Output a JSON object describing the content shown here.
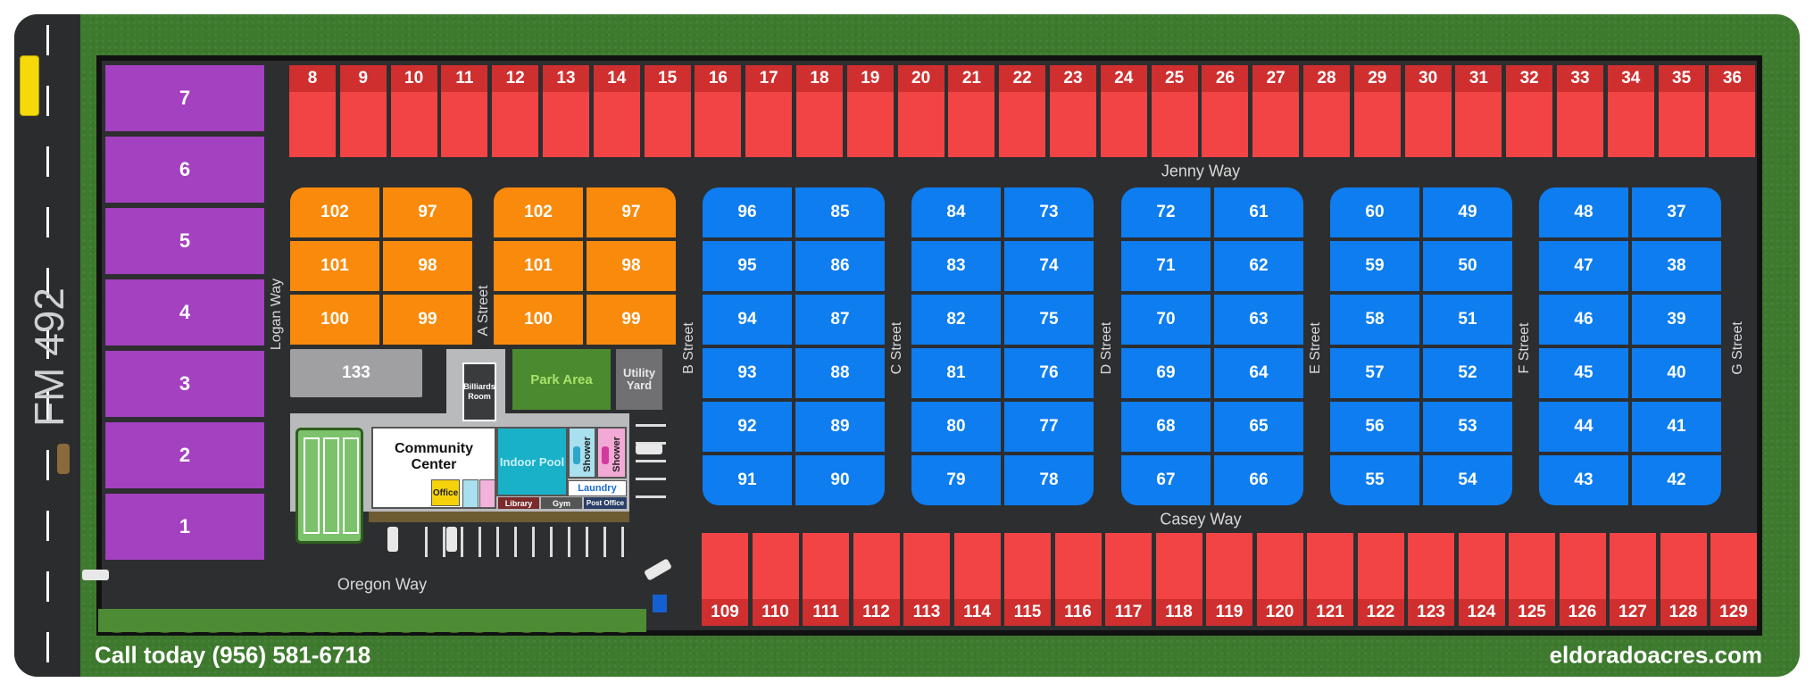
{
  "highway": {
    "label": "FM 492"
  },
  "streets": {
    "top": "Jenny Way",
    "middle": "Casey Way",
    "bottom": "Oregon Way",
    "logan": "Logan Way",
    "a": "A Street",
    "b": "B Street",
    "c": "C Street",
    "d": "D Street",
    "e": "E Street",
    "f": "F Street",
    "g": "G Street"
  },
  "lots": {
    "purple": [
      "7",
      "6",
      "5",
      "4",
      "3",
      "2",
      "1"
    ],
    "top_row": [
      "8",
      "9",
      "10",
      "11",
      "12",
      "13",
      "14",
      "15",
      "16",
      "17",
      "18",
      "19",
      "20",
      "21",
      "22",
      "23",
      "24",
      "25",
      "26",
      "27",
      "28",
      "29",
      "30",
      "31",
      "32",
      "33",
      "34",
      "35",
      "36"
    ],
    "bottom_row": [
      "109",
      "110",
      "111",
      "112",
      "113",
      "114",
      "115",
      "116",
      "117",
      "118",
      "119",
      "120",
      "121",
      "122",
      "123",
      "124",
      "125",
      "126",
      "127",
      "128",
      "129"
    ],
    "orange_blocks": [
      [
        [
          "102",
          "97"
        ],
        [
          "101",
          "98"
        ],
        [
          "100",
          "99"
        ]
      ],
      [
        [
          "102",
          "97"
        ],
        [
          "101",
          "98"
        ],
        [
          "100",
          "99"
        ]
      ]
    ],
    "blue_blocks": [
      [
        [
          "96",
          "85"
        ],
        [
          "95",
          "86"
        ],
        [
          "94",
          "87"
        ],
        [
          "93",
          "88"
        ],
        [
          "92",
          "89"
        ],
        [
          "91",
          "90"
        ]
      ],
      [
        [
          "84",
          "73"
        ],
        [
          "83",
          "74"
        ],
        [
          "82",
          "75"
        ],
        [
          "81",
          "76"
        ],
        [
          "80",
          "77"
        ],
        [
          "79",
          "78"
        ]
      ],
      [
        [
          "72",
          "61"
        ],
        [
          "71",
          "62"
        ],
        [
          "70",
          "63"
        ],
        [
          "69",
          "64"
        ],
        [
          "68",
          "65"
        ],
        [
          "67",
          "66"
        ]
      ],
      [
        [
          "60",
          "49"
        ],
        [
          "59",
          "50"
        ],
        [
          "58",
          "51"
        ],
        [
          "57",
          "52"
        ],
        [
          "56",
          "53"
        ],
        [
          "55",
          "54"
        ]
      ],
      [
        [
          "48",
          "37"
        ],
        [
          "47",
          "38"
        ],
        [
          "46",
          "39"
        ],
        [
          "45",
          "40"
        ],
        [
          "44",
          "41"
        ],
        [
          "43",
          "42"
        ]
      ]
    ],
    "lot_133": "133"
  },
  "amenities": {
    "park_area": "Park Area",
    "utility_yard": "Utility Yard",
    "billiards": "Billiards Room",
    "community_center": "Community Center",
    "indoor_pool": "Indoor Pool",
    "shower_men": "Shower",
    "shower_women": "Shower",
    "laundry": "Laundry",
    "office": "Office",
    "library": "Library",
    "gym": "Gym",
    "post_office": "Post Office"
  },
  "footer": {
    "phone": "Call today (956) 581-6718",
    "website": "eldoradoacres.com"
  },
  "colors": {
    "grass": "#3e7a2e",
    "road": "#2d2e30",
    "purple_lot": "#a441c0",
    "red_lot": "#f24444",
    "orange_lot": "#fa8a0b",
    "blue_lot": "#0d7df0"
  }
}
